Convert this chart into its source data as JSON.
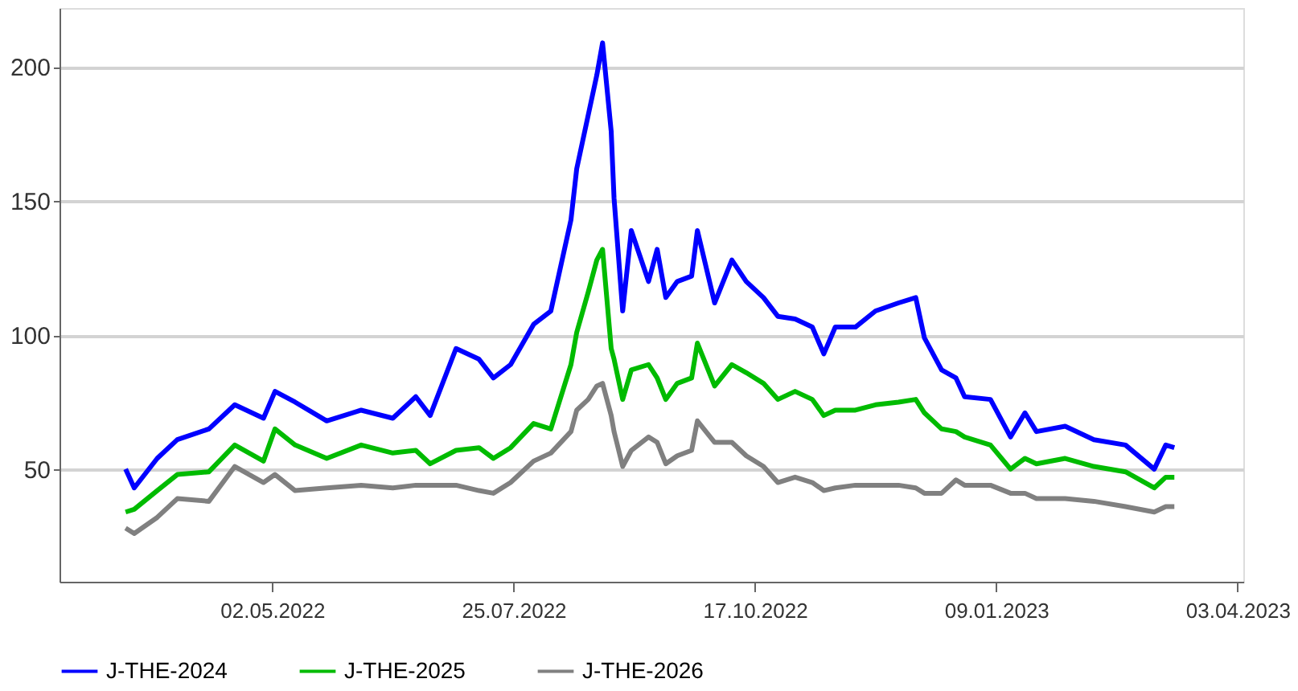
{
  "chart_data": {
    "type": "line",
    "x": [
      "2022-03-12",
      "2022-03-15",
      "2022-03-23",
      "2022-03-30",
      "2022-04-10",
      "2022-04-19",
      "2022-04-29",
      "2022-05-03",
      "2022-05-10",
      "2022-05-21",
      "2022-06-02",
      "2022-06-13",
      "2022-06-21",
      "2022-06-26",
      "2022-07-05",
      "2022-07-13",
      "2022-07-18",
      "2022-07-24",
      "2022-08-01",
      "2022-08-07",
      "2022-08-14",
      "2022-08-16",
      "2022-08-20",
      "2022-08-23",
      "2022-08-25",
      "2022-08-28",
      "2022-08-29",
      "2022-09-01",
      "2022-09-04",
      "2022-09-10",
      "2022-09-13",
      "2022-09-16",
      "2022-09-20",
      "2022-09-25",
      "2022-09-27",
      "2022-10-03",
      "2022-10-09",
      "2022-10-14",
      "2022-10-20",
      "2022-10-25",
      "2022-10-31",
      "2022-11-06",
      "2022-11-10",
      "2022-11-14",
      "2022-11-21",
      "2022-11-28",
      "2022-12-06",
      "2022-12-12",
      "2022-12-15",
      "2022-12-21",
      "2022-12-26",
      "2022-12-29",
      "2023-01-07",
      "2023-01-14",
      "2023-01-19",
      "2023-01-23",
      "2023-02-02",
      "2023-02-12",
      "2023-02-23",
      "2023-03-05",
      "2023-03-09",
      "2023-03-12"
    ],
    "series": [
      {
        "name": "J-THE-2024",
        "color": "#0000ff",
        "values": [
          50,
          43,
          54,
          61,
          65,
          74,
          69,
          79,
          75,
          68,
          72,
          69,
          77,
          70,
          95,
          91,
          84,
          89,
          104,
          109,
          143,
          162,
          182,
          197,
          209,
          176,
          151,
          109,
          139,
          120,
          132,
          114,
          120,
          122,
          139,
          112,
          128,
          120,
          114,
          107,
          106,
          103,
          93,
          103,
          103,
          109,
          112,
          114,
          99,
          87,
          84,
          77,
          76,
          62,
          71,
          64,
          66,
          61,
          59,
          50,
          59,
          58
        ]
      },
      {
        "name": "J-THE-2025",
        "color": "#00bb00",
        "values": [
          34,
          35,
          42,
          48,
          49,
          59,
          53,
          65,
          59,
          54,
          59,
          56,
          57,
          52,
          57,
          58,
          54,
          58,
          67,
          65,
          89,
          101,
          116,
          128,
          132,
          95,
          91,
          76,
          87,
          89,
          84,
          76,
          82,
          84,
          97,
          81,
          89,
          86,
          82,
          76,
          79,
          76,
          70,
          72,
          72,
          74,
          75,
          76,
          71,
          65,
          64,
          62,
          59,
          50,
          54,
          52,
          54,
          51,
          49,
          43,
          47,
          47
        ]
      },
      {
        "name": "J-THE-2026",
        "color": "#808080",
        "values": [
          28,
          26,
          32,
          39,
          38,
          51,
          45,
          48,
          42,
          43,
          44,
          43,
          44,
          44,
          44,
          42,
          41,
          45,
          53,
          56,
          64,
          72,
          76,
          81,
          82,
          70,
          64,
          51,
          57,
          62,
          60,
          52,
          55,
          57,
          68,
          60,
          60,
          55,
          51,
          45,
          47,
          45,
          42,
          43,
          44,
          44,
          44,
          43,
          41,
          41,
          46,
          44,
          44,
          41,
          41,
          39,
          39,
          38,
          36,
          34,
          36,
          36
        ]
      }
    ],
    "xlim": [
      "2022-02-17",
      "2023-04-05"
    ],
    "xticks": [
      {
        "value": "2022-05-02",
        "label": "02.05.2022"
      },
      {
        "value": "2022-07-25",
        "label": "25.07.2022"
      },
      {
        "value": "2022-10-17",
        "label": "17.10.2022"
      },
      {
        "value": "2023-01-09",
        "label": "09.01.2023"
      },
      {
        "value": "2023-04-03",
        "label": "03.04.2023"
      }
    ],
    "ylim": [
      8,
      222
    ],
    "yticks": [
      50,
      100,
      150,
      200
    ],
    "grid": "y",
    "legend": "bottom",
    "marker": "none",
    "line_style": "solid"
  }
}
